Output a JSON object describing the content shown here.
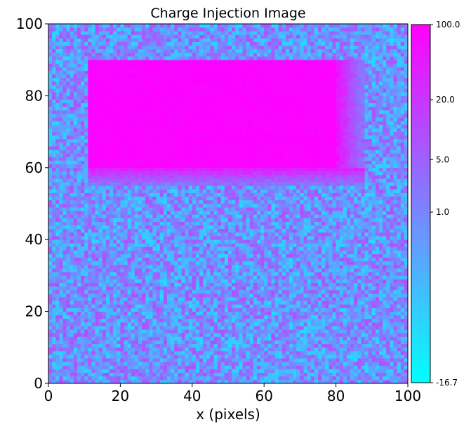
{
  "chart_data": {
    "type": "heatmap",
    "title": "Charge Injection Image",
    "xlabel": "x (pixels)",
    "ylabel": "",
    "xlim": [
      0,
      100
    ],
    "ylim": [
      0,
      100
    ],
    "x_ticks": [
      0,
      20,
      40,
      60,
      80,
      100
    ],
    "y_ticks": [
      0,
      20,
      40,
      60,
      80,
      100
    ],
    "grid": false,
    "colormap": "cool",
    "colormap_colors": [
      "#00ffff",
      "#ff00ff"
    ],
    "color_scale": "log",
    "colorbar": {
      "min": -16.7,
      "max": 100.0,
      "ticks": [
        -16.7,
        1.0,
        5.0,
        20.0,
        100.0
      ],
      "tick_labels": [
        "-16.7",
        "1.0",
        "5.0",
        "20.0",
        "100.0"
      ],
      "placement": "right"
    },
    "grid_size": [
      100,
      100
    ],
    "background": {
      "description_value": "noise",
      "approx_range": [
        -16.7,
        10
      ]
    },
    "injected_region": {
      "x": [
        11,
        80
      ],
      "y": [
        60,
        90
      ],
      "value": 100.0,
      "trail_x_end": 88,
      "trail_y_start": 55
    }
  }
}
